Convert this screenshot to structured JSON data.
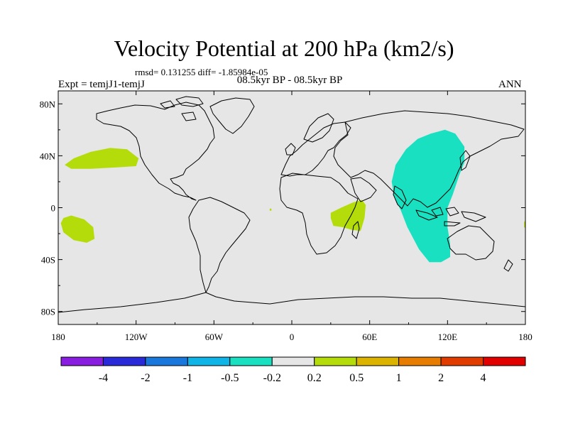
{
  "title": "Velocity Potential at 200 hPa (km2/s)",
  "stats_line": "rmsd= 0.131255 diff= -1.85984e-05",
  "period_line": "08.5kyr BP - 08.5kyr BP",
  "experiment_label": "Expt = temjJ1-temjJ",
  "season_label": "ANN",
  "map": {
    "projection": "cylindrical-equidistant",
    "lon_range": [
      -180,
      180
    ],
    "lat_range": [
      -90,
      90
    ],
    "background_color": "#e6e6e6",
    "x_ticks": [
      {
        "lon": -180,
        "label": "180"
      },
      {
        "lon": -120,
        "label": "120W"
      },
      {
        "lon": -60,
        "label": "60W"
      },
      {
        "lon": 0,
        "label": "0"
      },
      {
        "lon": 60,
        "label": "60E"
      },
      {
        "lon": 120,
        "label": "120E"
      },
      {
        "lon": 180,
        "label": "180"
      }
    ],
    "y_ticks": [
      {
        "lat": 80,
        "label": "80N"
      },
      {
        "lat": 40,
        "label": "40N"
      },
      {
        "lat": 0,
        "label": "0"
      },
      {
        "lat": -40,
        "label": "40S"
      },
      {
        "lat": -80,
        "label": "80S"
      }
    ]
  },
  "colorbar": {
    "levels": [
      "-4",
      "-2",
      "-1",
      "-0.5",
      "-0.2",
      "0.2",
      "0.5",
      "1",
      "2",
      "4"
    ],
    "colors": [
      "#8a1ee0",
      "#2a2ad8",
      "#1a78dc",
      "#10b4e6",
      "#18e0c0",
      "#e6e6e6",
      "#b4dc0a",
      "#dcb400",
      "#e67c00",
      "#e03c00",
      "#e00000"
    ]
  },
  "regions": [
    {
      "name": "north-pacific-positive",
      "level_range": "0.2 to 0.5",
      "color": "#b4dc0a",
      "lonlat": [
        [
          -175,
          33
        ],
        [
          -168,
          38
        ],
        [
          -155,
          43
        ],
        [
          -140,
          46
        ],
        [
          -127,
          45
        ],
        [
          -118,
          38
        ],
        [
          -120,
          32
        ],
        [
          -135,
          31
        ],
        [
          -155,
          30
        ],
        [
          -170,
          30
        ]
      ]
    },
    {
      "name": "south-pacific-positive",
      "level_range": "0.2 to 0.5",
      "color": "#b4dc0a",
      "lonlat": [
        [
          -176,
          -8
        ],
        [
          -170,
          -6
        ],
        [
          -160,
          -9
        ],
        [
          -153,
          -15
        ],
        [
          -152,
          -24
        ],
        [
          -158,
          -27
        ],
        [
          -168,
          -25
        ],
        [
          -176,
          -19
        ],
        [
          -178,
          -12
        ]
      ]
    },
    {
      "name": "east-africa-positive",
      "level_range": "0.2 to 0.5",
      "color": "#b4dc0a",
      "lonlat": [
        [
          30,
          -4
        ],
        [
          38,
          0
        ],
        [
          47,
          4
        ],
        [
          54,
          6
        ],
        [
          57,
          2
        ],
        [
          56,
          -8
        ],
        [
          53,
          -18
        ],
        [
          46,
          -17
        ],
        [
          39,
          -15
        ],
        [
          32,
          -14
        ],
        [
          30,
          -8
        ]
      ]
    },
    {
      "name": "atlantic-speck",
      "level_range": "0.2 to 0.5",
      "color": "#b4dc0a",
      "lonlat": [
        [
          -17,
          -1
        ],
        [
          -16,
          -0.5
        ],
        [
          -15.5,
          -2
        ],
        [
          -17,
          -2.5
        ]
      ]
    },
    {
      "name": "dateline-speck",
      "level_range": "0.2 to 0.5",
      "color": "#b4dc0a",
      "lonlat": [
        [
          179,
          -11
        ],
        [
          180,
          -10
        ],
        [
          180,
          -16
        ],
        [
          179,
          -15
        ]
      ]
    },
    {
      "name": "asia-indian-ocean-negative",
      "level_range": "-0.5 to -0.2",
      "color": "#18e0c0",
      "lonlat": [
        [
          80,
          33
        ],
        [
          88,
          45
        ],
        [
          97,
          53
        ],
        [
          107,
          57
        ],
        [
          118,
          60
        ],
        [
          126,
          57
        ],
        [
          133,
          47
        ],
        [
          133,
          35
        ],
        [
          129,
          25
        ],
        [
          124,
          10
        ],
        [
          120,
          0
        ],
        [
          120,
          -15
        ],
        [
          122,
          -28
        ],
        [
          122,
          -38
        ],
        [
          115,
          -42
        ],
        [
          106,
          -42
        ],
        [
          98,
          -32
        ],
        [
          89,
          -15
        ],
        [
          84,
          -2
        ],
        [
          79,
          8
        ],
        [
          77,
          20
        ]
      ]
    }
  ]
}
